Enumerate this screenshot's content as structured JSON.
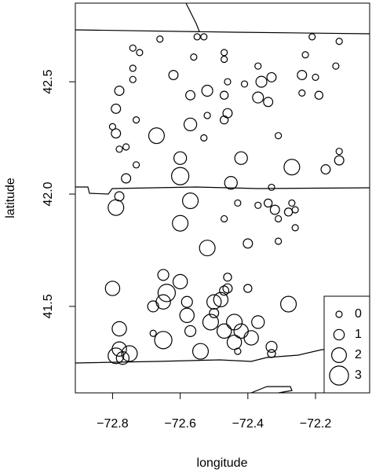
{
  "chart_data": {
    "type": "scatter",
    "x_label": "longitude",
    "y_label": "latitude",
    "color": "#000000",
    "x": [
      -72.74,
      -72.72,
      -72.66,
      -72.55,
      -72.53,
      -72.47,
      -72.47,
      -72.56,
      -72.74,
      -72.74,
      -72.62,
      -72.37,
      -72.46,
      -72.41,
      -72.36,
      -72.33,
      -72.24,
      -72.23,
      -72.21,
      -72.13,
      -72.14,
      -72.2,
      -72.19,
      -72.24,
      -72.47,
      -72.57,
      -72.52,
      -72.37,
      -72.34,
      -72.78,
      -72.79,
      -72.46,
      -72.47,
      -72.73,
      -72.52,
      -72.8,
      -72.57,
      -72.79,
      -72.67,
      -72.53,
      -72.31,
      -72.78,
      -72.76,
      -72.73,
      -72.6,
      -72.6,
      -72.76,
      -72.42,
      -72.27,
      -72.17,
      -72.13,
      -72.13,
      -72.45,
      -72.33,
      -72.78,
      -72.79,
      -72.57,
      -72.43,
      -72.37,
      -72.34,
      -72.32,
      -72.27,
      -72.26,
      -72.28,
      -72.31,
      -72.31,
      -72.26,
      -72.47,
      -72.6,
      -72.52,
      -72.4,
      -72.8,
      -72.65,
      -72.6,
      -72.64,
      -72.58,
      -72.68,
      -72.65,
      -72.46,
      -72.46,
      -72.47,
      -72.48,
      -72.5,
      -72.4,
      -72.5,
      -72.58,
      -72.51,
      -72.44,
      -72.42,
      -72.37,
      -72.28,
      -72.78,
      -72.68,
      -72.65,
      -72.57,
      -72.54,
      -72.47,
      -72.44,
      -72.39,
      -72.33,
      -72.43,
      -72.33,
      -72.78,
      -72.79,
      -72.75,
      -72.77
    ],
    "y": [
      42.65,
      42.63,
      42.69,
      42.7,
      42.7,
      42.63,
      42.6,
      42.61,
      42.56,
      42.51,
      42.53,
      42.57,
      42.5,
      42.49,
      42.5,
      42.52,
      42.53,
      42.62,
      42.7,
      42.68,
      42.57,
      42.52,
      42.44,
      42.45,
      42.44,
      42.44,
      42.46,
      42.43,
      42.41,
      42.46,
      42.38,
      42.36,
      42.33,
      42.33,
      42.35,
      42.3,
      42.31,
      42.27,
      42.26,
      42.25,
      42.26,
      42.2,
      42.21,
      42.13,
      42.16,
      42.08,
      42.07,
      42.16,
      42.12,
      42.11,
      42.15,
      42.19,
      42.05,
      42.03,
      41.99,
      41.94,
      41.97,
      41.96,
      41.95,
      41.96,
      41.93,
      41.96,
      41.93,
      41.92,
      41.89,
      41.79,
      41.85,
      41.89,
      41.87,
      41.76,
      41.78,
      41.58,
      41.64,
      41.61,
      41.56,
      41.52,
      41.5,
      41.52,
      41.63,
      41.58,
      41.57,
      41.53,
      41.52,
      41.58,
      41.47,
      41.46,
      41.43,
      41.43,
      41.39,
      41.43,
      41.51,
      41.4,
      41.38,
      41.35,
      41.39,
      41.3,
      41.39,
      41.34,
      41.36,
      41.32,
      41.3,
      41.29,
      41.31,
      41.28,
      41.29,
      41.27
    ],
    "sizes": [
      0,
      0,
      0,
      0,
      0,
      0,
      0,
      0,
      0,
      0,
      0.7,
      0,
      0,
      0,
      1.1,
      0.7,
      0.7,
      0,
      0,
      0,
      0,
      0,
      0.4,
      0,
      0.4,
      0.7,
      1.1,
      1.1,
      0.7,
      0.7,
      0.7,
      0.7,
      0.4,
      0,
      0,
      0,
      1.5,
      0.7,
      2.2,
      0,
      0,
      0,
      0,
      0,
      1.5,
      2.6,
      0.7,
      1.5,
      2.2,
      0.7,
      0.7,
      0,
      1.5,
      0,
      0.7,
      2.2,
      2.2,
      0,
      0,
      0.4,
      0.7,
      0,
      0,
      0.4,
      0,
      0,
      0,
      0,
      2.2,
      2.2,
      0.7,
      1.9,
      1.1,
      1.9,
      2.6,
      1.1,
      1.1,
      1.9,
      0.4,
      0.7,
      0.7,
      1.9,
      1.9,
      0.4,
      0.7,
      1.9,
      2.2,
      2.2,
      1.9,
      1.5,
      2.2,
      1.9,
      0,
      2.6,
      1.1,
      2.2,
      1.9,
      1.9,
      1.9,
      1.1,
      0,
      0.4,
      1.9,
      2.2,
      2.2,
      1.5
    ],
    "xlim": [
      -72.91,
      -72.04
    ],
    "ylim": [
      41.115,
      42.85
    ],
    "xticks": [
      {
        "value": -72.8,
        "label": "−72.8"
      },
      {
        "value": -72.6,
        "label": "−72.6"
      },
      {
        "value": -72.4,
        "label": "−72.4"
      },
      {
        "value": -72.2,
        "label": "−72.2"
      }
    ],
    "yticks": [
      41.5,
      {
        "value": 42.0,
        "label": "42.0"
      },
      42.5
    ],
    "size_legend": [
      0,
      1,
      2,
      3
    ]
  }
}
